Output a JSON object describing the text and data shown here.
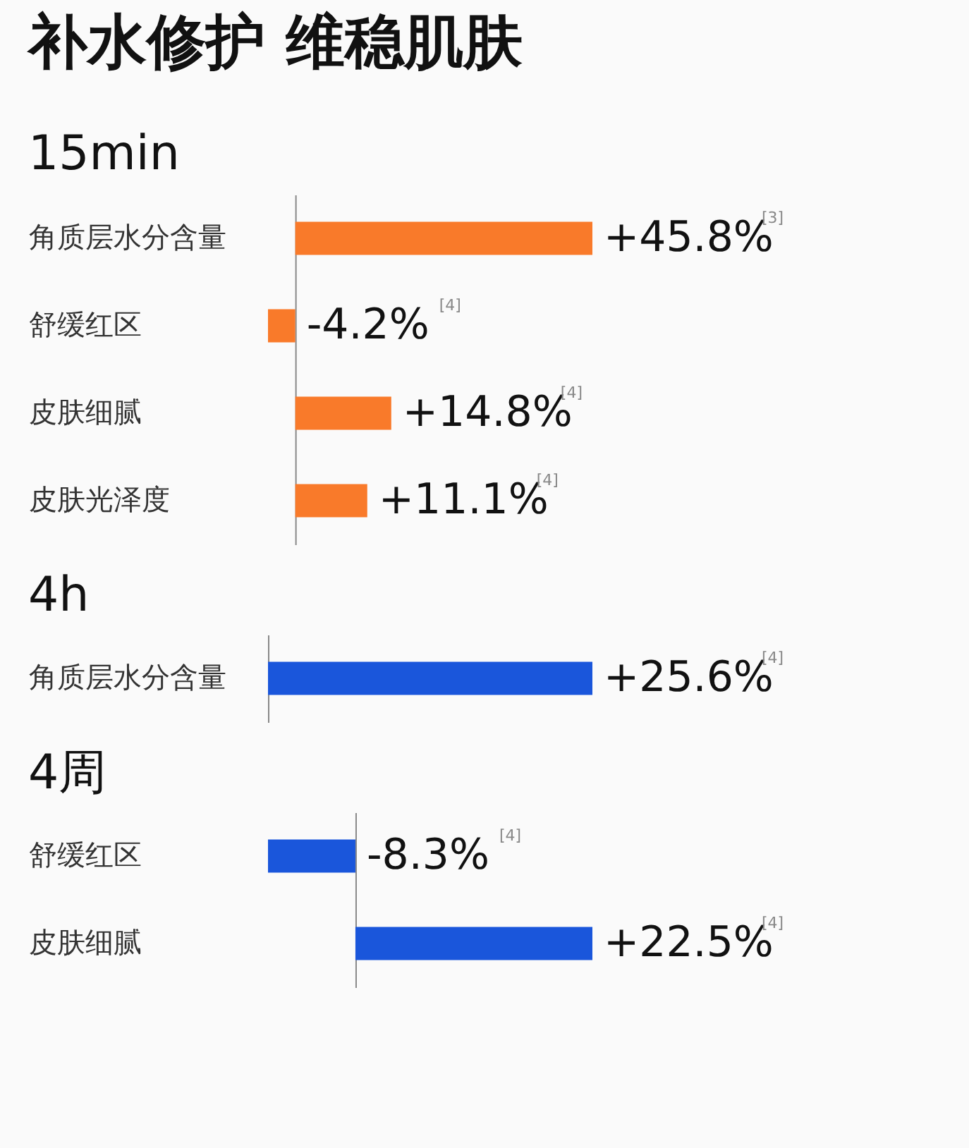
{
  "chart_data": [
    {
      "type": "bar",
      "orientation": "horizontal",
      "title": "补水修护 维稳肌肤",
      "subtitle": "15min",
      "categories": [
        "角质层水分含量",
        "舒缓红区",
        "皮肤细腻",
        "皮肤光泽度"
      ],
      "values": [
        45.8,
        -4.2,
        14.8,
        11.1
      ],
      "value_labels": [
        "+45.8%",
        "-4.2%",
        "+14.8%",
        "+11.1%"
      ],
      "color": "#f97a2a",
      "tick_labels": "y",
      "annotations": [
        "[3]",
        "[4]",
        "[4]",
        "[4]"
      ]
    },
    {
      "type": "bar",
      "orientation": "horizontal",
      "title": "4h",
      "categories": [
        "角质层水分含量"
      ],
      "values": [
        25.6
      ],
      "value_labels": [
        "+25.6%"
      ],
      "color": "#1a56db",
      "tick_labels": "y",
      "annotations": [
        "[4]"
      ]
    },
    {
      "type": "bar",
      "orientation": "horizontal",
      "title": "4周",
      "categories": [
        "舒缓红区",
        "皮肤细腻"
      ],
      "values": [
        -8.3,
        22.5
      ],
      "value_labels": [
        "-8.3%",
        "+22.5%"
      ],
      "color": "#1a56db",
      "tick_labels": "y",
      "annotations": [
        "[4]",
        "[4]"
      ]
    }
  ]
}
